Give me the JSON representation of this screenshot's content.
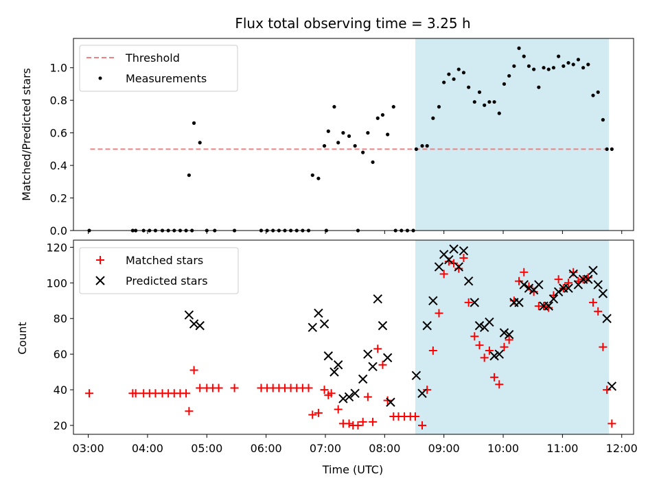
{
  "chart_data": [
    {
      "type": "scatter",
      "title": "Flux total observing time = 3.25 h",
      "ylabel": "Matched/Predicted stars",
      "xlabel": "",
      "xlim": [
        "02:45",
        "12:12"
      ],
      "ylim": [
        0,
        1.18
      ],
      "yticks": [
        "0.0",
        "0.2",
        "0.4",
        "0.6",
        "0.8",
        "1.0"
      ],
      "shaded_interval": [
        "08:31",
        "11:47"
      ],
      "shade_color": "#add8e6",
      "legend_position": "upper left",
      "threshold": {
        "name": "Threshold",
        "value": 0.5,
        "x_range": [
          "03:02",
          "11:48"
        ],
        "color": "#f08080",
        "style": "dashed"
      },
      "series": [
        {
          "name": "Measurements",
          "marker": "dot",
          "color": "#000000",
          "points": [
            [
              "03:01",
              0
            ],
            [
              "03:45",
              0
            ],
            [
              "03:48",
              0
            ],
            [
              "03:56",
              0
            ],
            [
              "04:02",
              0
            ],
            [
              "04:08",
              0
            ],
            [
              "04:15",
              0
            ],
            [
              "04:21",
              0
            ],
            [
              "04:27",
              0
            ],
            [
              "04:33",
              0
            ],
            [
              "04:39",
              0
            ],
            [
              "04:45",
              0
            ],
            [
              "04:42",
              0.34
            ],
            [
              "04:47",
              0.66
            ],
            [
              "04:53",
              0.54
            ],
            [
              "05:00",
              0
            ],
            [
              "05:08",
              0
            ],
            [
              "05:28",
              0
            ],
            [
              "05:55",
              0
            ],
            [
              "06:01",
              0
            ],
            [
              "06:07",
              0
            ],
            [
              "06:13",
              0
            ],
            [
              "06:19",
              0
            ],
            [
              "06:25",
              0
            ],
            [
              "06:31",
              0
            ],
            [
              "06:37",
              0
            ],
            [
              "06:43",
              0
            ],
            [
              "06:47",
              0.34
            ],
            [
              "06:53",
              0.32
            ],
            [
              "06:59",
              0.52
            ],
            [
              "07:01",
              0
            ],
            [
              "07:03",
              0.61
            ],
            [
              "07:09",
              0.76
            ],
            [
              "07:13",
              0.54
            ],
            [
              "07:18",
              0.6
            ],
            [
              "07:24",
              0.58
            ],
            [
              "07:30",
              0.52
            ],
            [
              "07:33",
              0
            ],
            [
              "07:38",
              0.48
            ],
            [
              "07:43",
              0.6
            ],
            [
              "07:48",
              0.42
            ],
            [
              "07:53",
              0.69
            ],
            [
              "07:58",
              0.71
            ],
            [
              "08:03",
              0.59
            ],
            [
              "08:09",
              0.76
            ],
            [
              "08:11",
              0
            ],
            [
              "08:17",
              0
            ],
            [
              "08:23",
              0
            ],
            [
              "08:29",
              0
            ],
            [
              "08:32",
              0.5
            ],
            [
              "08:38",
              0.52
            ],
            [
              "08:43",
              0.52
            ],
            [
              "08:49",
              0.69
            ],
            [
              "08:55",
              0.76
            ],
            [
              "09:00",
              0.91
            ],
            [
              "09:05",
              0.96
            ],
            [
              "09:10",
              0.93
            ],
            [
              "09:15",
              0.99
            ],
            [
              "09:20",
              0.97
            ],
            [
              "09:25",
              0.88
            ],
            [
              "09:31",
              0.79
            ],
            [
              "09:36",
              0.85
            ],
            [
              "09:41",
              0.77
            ],
            [
              "09:46",
              0.79
            ],
            [
              "09:51",
              0.79
            ],
            [
              "09:56",
              0.72
            ],
            [
              "10:01",
              0.9
            ],
            [
              "10:06",
              0.95
            ],
            [
              "10:11",
              1.01
            ],
            [
              "10:16",
              1.12
            ],
            [
              "10:21",
              1.07
            ],
            [
              "10:26",
              1.01
            ],
            [
              "10:31",
              0.99
            ],
            [
              "10:36",
              0.88
            ],
            [
              "10:41",
              1.0
            ],
            [
              "10:46",
              0.99
            ],
            [
              "10:51",
              1.0
            ],
            [
              "10:56",
              1.07
            ],
            [
              "11:01",
              1.01
            ],
            [
              "11:06",
              1.03
            ],
            [
              "11:11",
              1.02
            ],
            [
              "11:16",
              1.05
            ],
            [
              "11:21",
              1.0
            ],
            [
              "11:26",
              1.02
            ],
            [
              "11:31",
              0.83
            ],
            [
              "11:36",
              0.85
            ],
            [
              "11:41",
              0.68
            ],
            [
              "11:45",
              0.5
            ],
            [
              "11:50",
              0.5
            ]
          ]
        }
      ]
    },
    {
      "type": "scatter",
      "title": "",
      "xlabel": "Time (UTC)",
      "ylabel": "Count",
      "xlim": [
        "02:45",
        "12:12"
      ],
      "ylim": [
        15,
        124
      ],
      "xticks": [
        "03:00",
        "04:00",
        "05:00",
        "06:00",
        "07:00",
        "08:00",
        "09:00",
        "10:00",
        "11:00",
        "12:00"
      ],
      "yticks": [
        "20",
        "40",
        "60",
        "80",
        "100",
        "120"
      ],
      "shaded_interval": [
        "08:31",
        "11:47"
      ],
      "shade_color": "#add8e6",
      "legend_position": "upper left",
      "series": [
        {
          "name": "Matched stars",
          "marker": "plus",
          "color": "#ff0000",
          "points": [
            [
              "03:01",
              38
            ],
            [
              "03:45",
              38
            ],
            [
              "03:48",
              38
            ],
            [
              "03:56",
              38
            ],
            [
              "04:02",
              38
            ],
            [
              "04:08",
              38
            ],
            [
              "04:15",
              38
            ],
            [
              "04:21",
              38
            ],
            [
              "04:27",
              38
            ],
            [
              "04:33",
              38
            ],
            [
              "04:39",
              38
            ],
            [
              "04:42",
              28
            ],
            [
              "04:47",
              51
            ],
            [
              "04:53",
              41
            ],
            [
              "05:00",
              41
            ],
            [
              "05:06",
              41
            ],
            [
              "05:12",
              41
            ],
            [
              "05:28",
              41
            ],
            [
              "05:55",
              41
            ],
            [
              "06:01",
              41
            ],
            [
              "06:07",
              41
            ],
            [
              "06:13",
              41
            ],
            [
              "06:19",
              41
            ],
            [
              "06:25",
              41
            ],
            [
              "06:31",
              41
            ],
            [
              "06:37",
              41
            ],
            [
              "06:43",
              41
            ],
            [
              "06:47",
              26
            ],
            [
              "06:53",
              27
            ],
            [
              "06:59",
              40
            ],
            [
              "07:03",
              37
            ],
            [
              "07:06",
              38
            ],
            [
              "07:13",
              29
            ],
            [
              "07:18",
              21
            ],
            [
              "07:24",
              21
            ],
            [
              "07:28",
              20
            ],
            [
              "07:33",
              20
            ],
            [
              "07:38",
              22
            ],
            [
              "07:43",
              36
            ],
            [
              "07:48",
              22
            ],
            [
              "07:53",
              63
            ],
            [
              "07:58",
              54
            ],
            [
              "08:03",
              34
            ],
            [
              "08:09",
              25
            ],
            [
              "08:14",
              25
            ],
            [
              "08:20",
              25
            ],
            [
              "08:26",
              25
            ],
            [
              "08:31",
              25
            ],
            [
              "08:38",
              20
            ],
            [
              "08:43",
              40
            ],
            [
              "08:49",
              62
            ],
            [
              "08:55",
              83
            ],
            [
              "09:00",
              105
            ],
            [
              "09:05",
              112
            ],
            [
              "09:10",
              111
            ],
            [
              "09:15",
              108
            ],
            [
              "09:20",
              114
            ],
            [
              "09:25",
              89
            ],
            [
              "09:31",
              70
            ],
            [
              "09:36",
              65
            ],
            [
              "09:41",
              58
            ],
            [
              "09:46",
              62
            ],
            [
              "09:51",
              47
            ],
            [
              "09:56",
              43
            ],
            [
              "10:01",
              64
            ],
            [
              "10:06",
              68
            ],
            [
              "10:11",
              90
            ],
            [
              "10:16",
              101
            ],
            [
              "10:21",
              106
            ],
            [
              "10:26",
              98
            ],
            [
              "10:31",
              95
            ],
            [
              "10:36",
              87
            ],
            [
              "10:41",
              87
            ],
            [
              "10:46",
              86
            ],
            [
              "10:51",
              93
            ],
            [
              "10:56",
              102
            ],
            [
              "11:01",
              97
            ],
            [
              "11:06",
              100
            ],
            [
              "11:11",
              106
            ],
            [
              "11:16",
              101
            ],
            [
              "11:21",
              102
            ],
            [
              "11:26",
              103
            ],
            [
              "11:31",
              89
            ],
            [
              "11:36",
              84
            ],
            [
              "11:41",
              64
            ],
            [
              "11:45",
              40
            ],
            [
              "11:50",
              21
            ]
          ]
        },
        {
          "name": "Predicted stars",
          "marker": "x",
          "color": "#000000",
          "points": [
            [
              "04:42",
              82
            ],
            [
              "04:47",
              77
            ],
            [
              "04:53",
              76
            ],
            [
              "06:47",
              75
            ],
            [
              "06:53",
              83
            ],
            [
              "06:59",
              77
            ],
            [
              "07:03",
              59
            ],
            [
              "07:09",
              50
            ],
            [
              "07:13",
              54
            ],
            [
              "07:18",
              35
            ],
            [
              "07:24",
              36
            ],
            [
              "07:30",
              38
            ],
            [
              "07:38",
              46
            ],
            [
              "07:43",
              60
            ],
            [
              "07:48",
              53
            ],
            [
              "07:53",
              91
            ],
            [
              "07:58",
              76
            ],
            [
              "08:03",
              58
            ],
            [
              "08:06",
              33
            ],
            [
              "08:32",
              48
            ],
            [
              "08:38",
              38
            ],
            [
              "08:43",
              76
            ],
            [
              "08:49",
              90
            ],
            [
              "08:55",
              109
            ],
            [
              "09:00",
              116
            ],
            [
              "09:05",
              113
            ],
            [
              "09:10",
              119
            ],
            [
              "09:15",
              109
            ],
            [
              "09:20",
              118
            ],
            [
              "09:25",
              101
            ],
            [
              "09:31",
              89
            ],
            [
              "09:36",
              76
            ],
            [
              "09:41",
              75
            ],
            [
              "09:46",
              78
            ],
            [
              "09:51",
              59
            ],
            [
              "09:56",
              60
            ],
            [
              "10:01",
              72
            ],
            [
              "10:06",
              71
            ],
            [
              "10:11",
              89
            ],
            [
              "10:16",
              89
            ],
            [
              "10:21",
              99
            ],
            [
              "10:26",
              97
            ],
            [
              "10:31",
              96
            ],
            [
              "10:36",
              99
            ],
            [
              "10:41",
              87
            ],
            [
              "10:46",
              87
            ],
            [
              "10:51",
              91
            ],
            [
              "10:56",
              95
            ],
            [
              "11:01",
              97
            ],
            [
              "11:06",
              97
            ],
            [
              "11:11",
              105
            ],
            [
              "11:16",
              99
            ],
            [
              "11:21",
              102
            ],
            [
              "11:26",
              102
            ],
            [
              "11:31",
              107
            ],
            [
              "11:36",
              99
            ],
            [
              "11:41",
              94
            ],
            [
              "11:45",
              80
            ],
            [
              "11:50",
              42
            ]
          ]
        }
      ]
    }
  ]
}
